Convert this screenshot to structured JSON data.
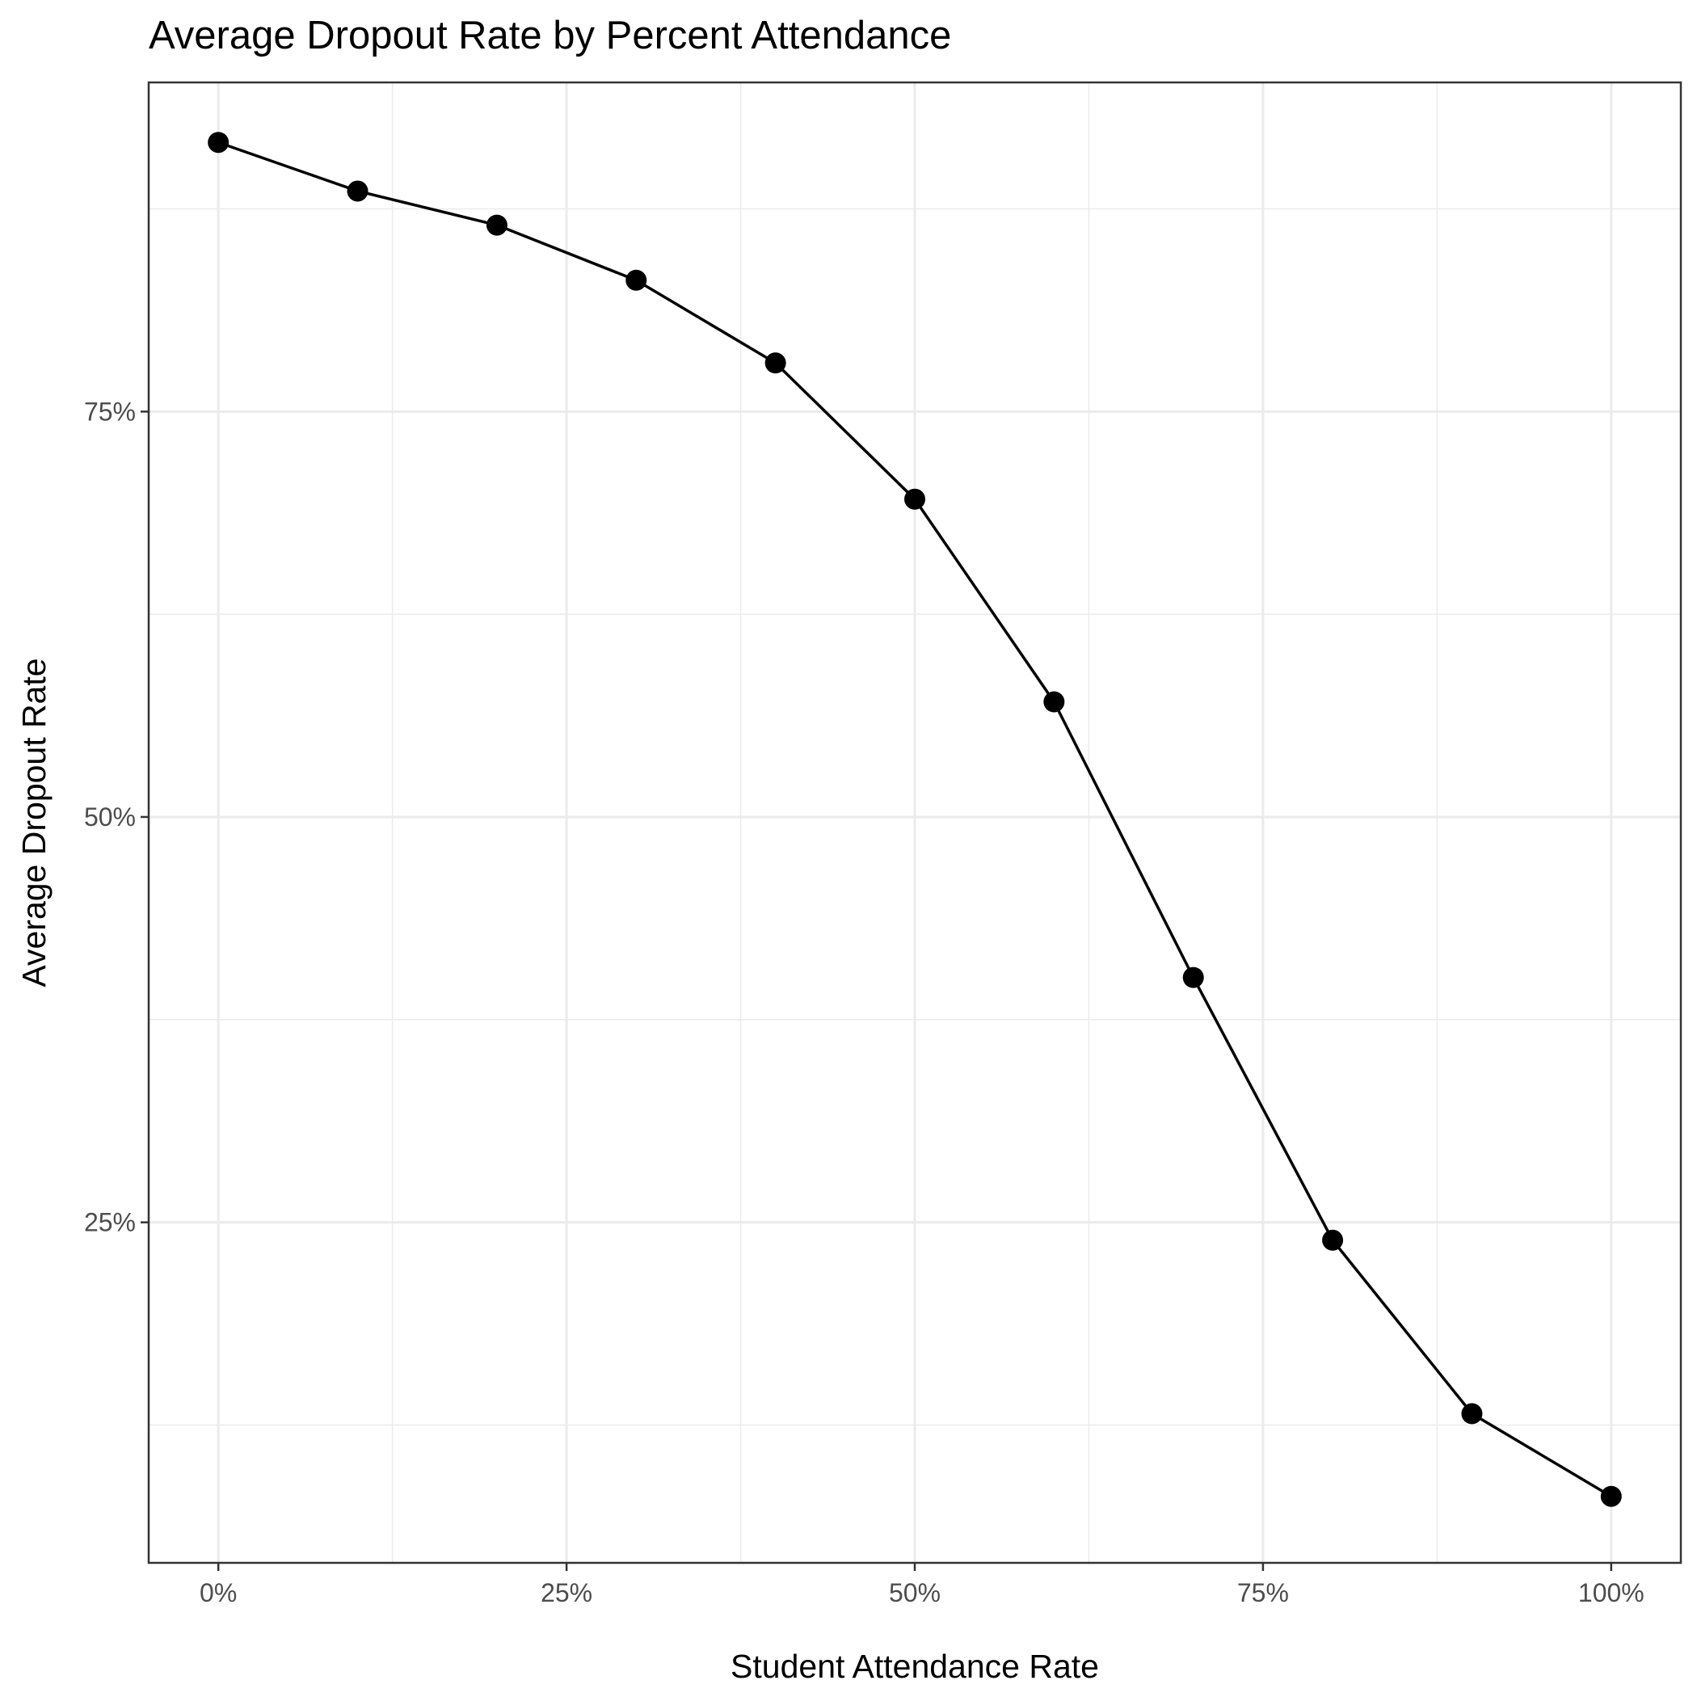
{
  "chart_data": {
    "type": "line",
    "title": "Average Dropout Rate by Percent Attendance",
    "xlabel": "Student Attendance Rate",
    "ylabel": "Average Dropout Rate",
    "x": [
      0,
      10,
      20,
      30,
      40,
      50,
      60,
      70,
      80,
      90,
      100
    ],
    "series": [
      {
        "values": [
          91.6,
          88.6,
          86.5,
          83.1,
          78.0,
          69.6,
          57.1,
          40.1,
          23.9,
          13.2,
          8.1
        ]
      }
    ],
    "xlim": [
      -5,
      105
    ],
    "ylim": [
      4.0,
      95.3
    ],
    "x_ticks": [
      0,
      25,
      50,
      75,
      100
    ],
    "x_tick_labels": [
      "0%",
      "25%",
      "50%",
      "75%",
      "100%"
    ],
    "y_ticks": [
      25,
      50,
      75
    ],
    "y_tick_labels": [
      "25%",
      "50%",
      "75%"
    ],
    "x_minor_ticks": [
      12.5,
      37.5,
      62.5,
      87.5
    ],
    "y_minor_ticks": [
      12.5,
      37.5,
      62.5,
      87.5
    ],
    "grid": true,
    "legend": "none",
    "colors": {
      "line": "#000000",
      "point": "#000000",
      "grid": "#ebebeb",
      "border": "#333333",
      "tick_text": "#4d4d4d"
    }
  }
}
